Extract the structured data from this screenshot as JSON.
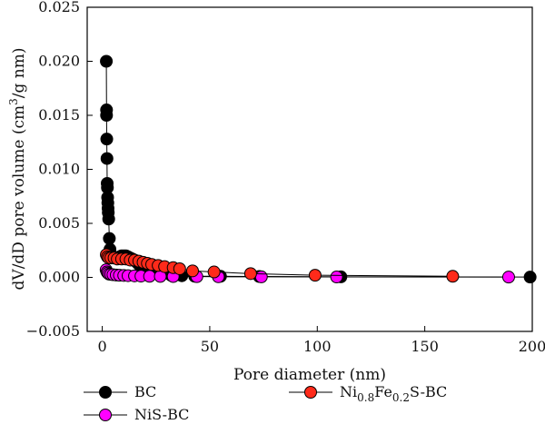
{
  "chart_data": {
    "type": "scatter",
    "xlabel": "Pore diameter (nm)",
    "ylabel_parts": [
      "dV/dD pore volume (cm",
      "3",
      "/g nm)"
    ],
    "xlim": [
      -7,
      200
    ],
    "ylim": [
      -0.005,
      0.025
    ],
    "x_ticks": [
      0,
      50,
      100,
      150,
      200
    ],
    "x_tick_labels": [
      "0",
      "50",
      "100",
      "150",
      "200"
    ],
    "y_ticks": [
      -0.005,
      0.0,
      0.005,
      0.01,
      0.015,
      0.02,
      0.025
    ],
    "y_tick_labels": [
      "−0.005",
      "0.000",
      "0.005",
      "0.010",
      "0.015",
      "0.020",
      "0.025"
    ],
    "grid": false,
    "legend_position": "bottom",
    "series": [
      {
        "name": "BC",
        "color": "#000000",
        "points": [
          [
            1.9,
            0.02
          ],
          [
            2.0,
            0.0155
          ],
          [
            2.0,
            0.015
          ],
          [
            2.1,
            0.0128
          ],
          [
            2.2,
            0.011
          ],
          [
            2.3,
            0.0087
          ],
          [
            2.4,
            0.0083
          ],
          [
            2.5,
            0.0074
          ],
          [
            2.6,
            0.0069
          ],
          [
            2.7,
            0.0064
          ],
          [
            2.8,
            0.006
          ],
          [
            3.0,
            0.0054
          ],
          [
            3.3,
            0.0036
          ],
          [
            3.6,
            0.0026
          ],
          [
            4.0,
            0.0021
          ],
          [
            4.5,
            0.0019
          ],
          [
            5.0,
            0.0018
          ],
          [
            6.0,
            0.0018
          ],
          [
            7.0,
            0.0018
          ],
          [
            8.0,
            0.0019
          ],
          [
            9.0,
            0.002
          ],
          [
            10.0,
            0.002
          ],
          [
            11.0,
            0.002
          ],
          [
            12.0,
            0.0019
          ],
          [
            13.0,
            0.0018
          ],
          [
            14.0,
            0.0017
          ],
          [
            15.0,
            0.0016
          ],
          [
            16.0,
            0.0014
          ],
          [
            17.0,
            0.0012
          ],
          [
            18.0,
            0.001
          ],
          [
            20.0,
            0.0008
          ],
          [
            22.0,
            0.0006
          ],
          [
            25.0,
            0.0004
          ],
          [
            28.0,
            0.0003
          ],
          [
            32.0,
            0.0002
          ],
          [
            37.0,
            0.00015
          ],
          [
            43.0,
            0.0001
          ],
          [
            55.0,
            0.0001
          ],
          [
            73.0,
            8e-05
          ],
          [
            111.0,
            5e-05
          ],
          [
            199.0,
            3e-05
          ]
        ]
      },
      {
        "name": "NiS-BC",
        "color": "#ff00ff",
        "points": [
          [
            1.8,
            0.0007
          ],
          [
            2.2,
            0.0005
          ],
          [
            2.6,
            0.0004
          ],
          [
            3.2,
            0.0003
          ],
          [
            4.0,
            0.00028
          ],
          [
            5.0,
            0.00025
          ],
          [
            6.5,
            0.00022
          ],
          [
            8.0,
            0.0002
          ],
          [
            10.0,
            0.00018
          ],
          [
            12.0,
            0.00016
          ],
          [
            15.0,
            0.00014
          ],
          [
            18.0,
            0.00012
          ],
          [
            22.0,
            0.0001
          ],
          [
            27.0,
            9e-05
          ],
          [
            33.0,
            8e-05
          ],
          [
            44.0,
            7e-05
          ],
          [
            54.0,
            6e-05
          ],
          [
            74.0,
            5e-05
          ],
          [
            109.0,
            4e-05
          ],
          [
            189.0,
            3e-05
          ]
        ]
      },
      {
        "name": "Ni<sub>0.8</sub>Fe<sub>0.2</sub>S-BC",
        "name_parts": [
          "Ni",
          "0.8",
          "Fe",
          "0.2",
          "S-BC"
        ],
        "color": "#ff2a1a",
        "points": [
          [
            1.9,
            0.0021
          ],
          [
            2.4,
            0.0019
          ],
          [
            3.0,
            0.0018
          ],
          [
            4.0,
            0.0018
          ],
          [
            5.5,
            0.0018
          ],
          [
            7.0,
            0.0017
          ],
          [
            9.0,
            0.0017
          ],
          [
            11.0,
            0.0017
          ],
          [
            13.0,
            0.0016
          ],
          [
            15.0,
            0.0016
          ],
          [
            17.0,
            0.0015
          ],
          [
            19.0,
            0.0014
          ],
          [
            21.0,
            0.0013
          ],
          [
            23.0,
            0.0012
          ],
          [
            26.0,
            0.0011
          ],
          [
            29.0,
            0.001
          ],
          [
            33.0,
            0.0009
          ],
          [
            36.0,
            0.0008
          ],
          [
            42.0,
            0.0006
          ],
          [
            52.0,
            0.0005
          ],
          [
            69.0,
            0.00035
          ],
          [
            99.0,
            0.0002
          ],
          [
            163.0,
            0.0001
          ]
        ]
      }
    ]
  }
}
